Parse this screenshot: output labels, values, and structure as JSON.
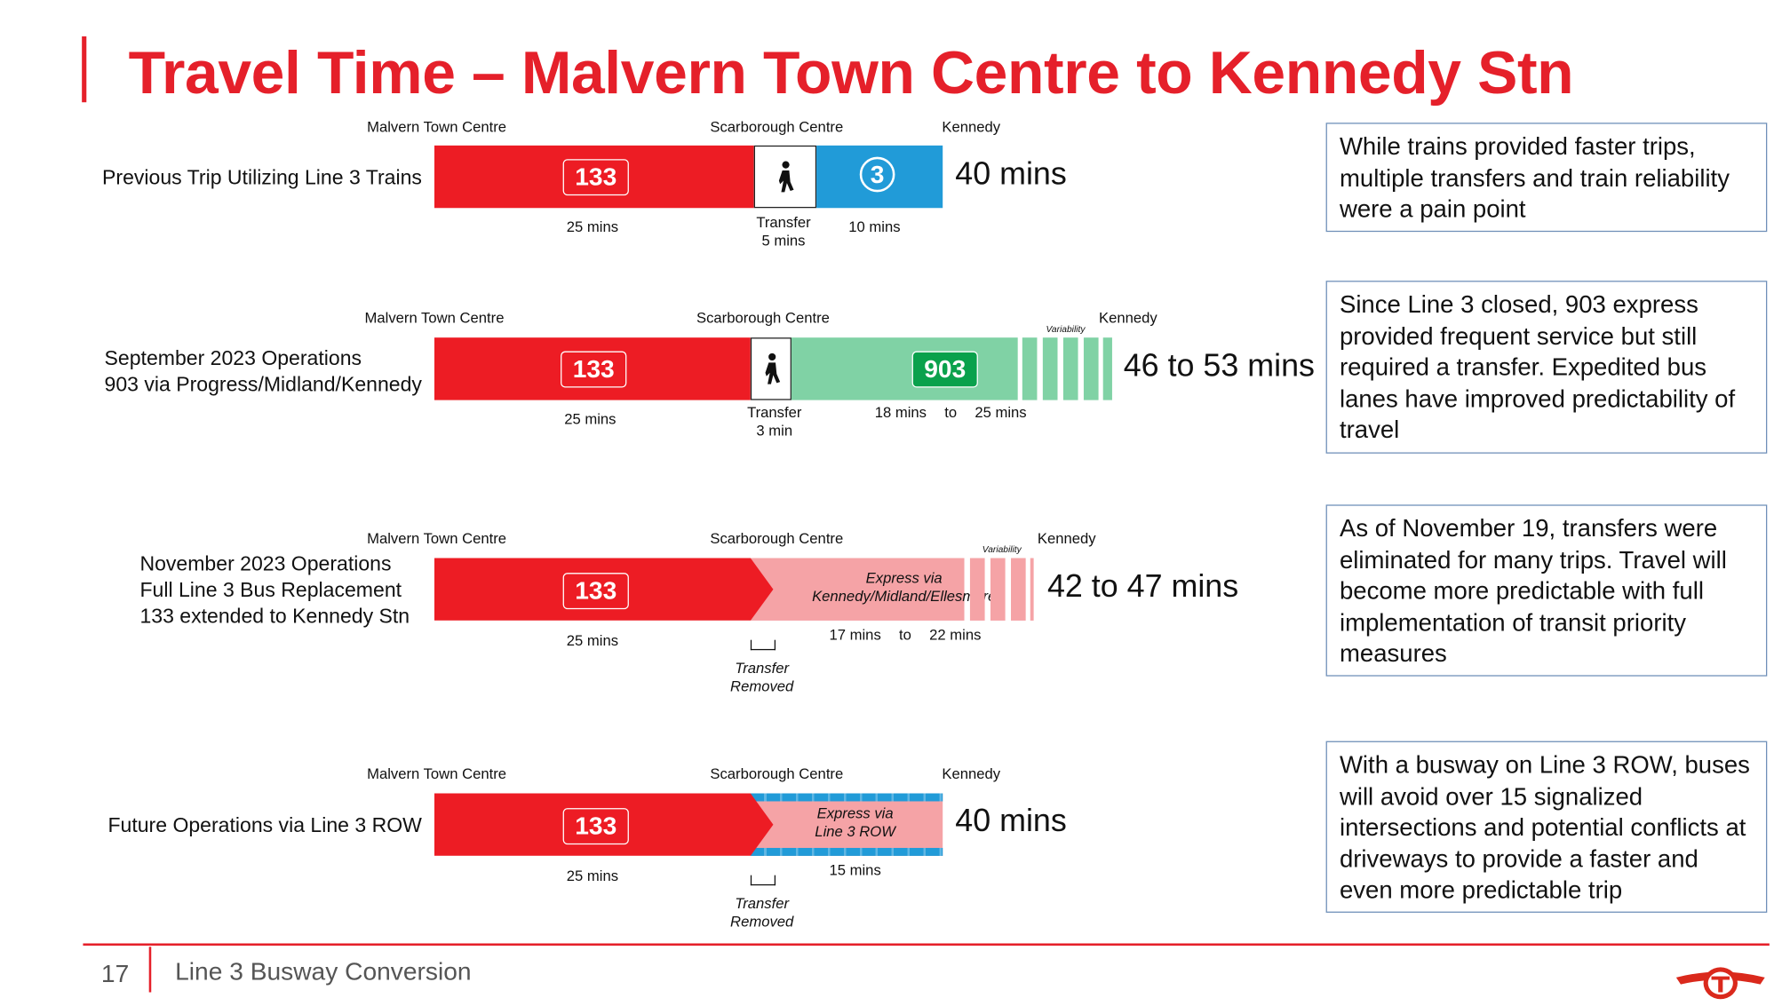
{
  "title": "Travel Time – Malvern Town Centre to Kennedy Stn",
  "colors": {
    "accent_red": "#e5202a",
    "line3_blue": "#219bd8",
    "express_green": "#80d2a5",
    "route903_green": "#0aa14c",
    "express_pink": "#f5a3a6"
  },
  "rows": [
    {
      "label": [
        "Previous Trip Utilizing Line 3 Trains"
      ],
      "stations": [
        "Malvern Town Centre",
        "Scarborough Centre",
        "Kennedy"
      ],
      "route_badge": "133",
      "walk_icon": "walking-person-icon",
      "line_badge": "3",
      "total": "40 mins",
      "seg1_time": "25 mins",
      "transfer": [
        "Transfer",
        "5 mins"
      ],
      "seg2_time": "10 mins"
    },
    {
      "label": [
        "September 2023 Operations",
        "903 via Progress/Midland/Kennedy"
      ],
      "stations": [
        "Malvern Town Centre",
        "Scarborough Centre",
        "Kennedy"
      ],
      "route_badge": "133",
      "walk_icon": "walking-person-icon",
      "route2_badge": "903",
      "variability": "Variability",
      "total": "46 to 53 mins",
      "seg1_time": "25 mins",
      "transfer": [
        "Transfer",
        "3 min"
      ],
      "seg2_time": [
        "18 mins",
        "to",
        "25 mins"
      ]
    },
    {
      "label": [
        "November 2023 Operations",
        "Full Line 3 Bus Replacement",
        "133 extended to Kennedy Stn"
      ],
      "stations": [
        "Malvern Town Centre",
        "Scarborough Centre",
        "Kennedy"
      ],
      "route_badge": "133",
      "express": [
        "Express via",
        "Kennedy/Midland/Ellesmere"
      ],
      "variability": "Variability",
      "total": "42 to 47 mins",
      "seg1_time": "25 mins",
      "transfer": [
        "Transfer",
        "Removed"
      ],
      "seg2_time": [
        "17 mins",
        "to",
        "22 mins"
      ]
    },
    {
      "label": [
        "Future Operations via Line 3 ROW"
      ],
      "stations": [
        "Malvern Town Centre",
        "Scarborough Centre",
        "Kennedy"
      ],
      "route_badge": "133",
      "express": [
        "Express via",
        "Line 3 ROW"
      ],
      "total": "40 mins",
      "seg1_time": "25 mins",
      "transfer": [
        "Transfer",
        "Removed"
      ],
      "seg2_time": "15 mins"
    }
  ],
  "notes": [
    "While trains provided faster trips, multiple transfers and train reliability were a pain point",
    "Since Line 3 closed, 903 express provided frequent service but still required a transfer. Expedited bus lanes have improved predictability of travel",
    "As of November 19, transfers were eliminated for many trips. Travel will become more predictable with full implementation of transit priority measures",
    "With a busway on Line 3 ROW, buses will avoid over 15 signalized intersections and potential conflicts at driveways to provide a faster and even more predictable trip"
  ],
  "footer": {
    "page_number": "17",
    "text": "Line 3 Busway Conversion",
    "logo": "TTC"
  }
}
